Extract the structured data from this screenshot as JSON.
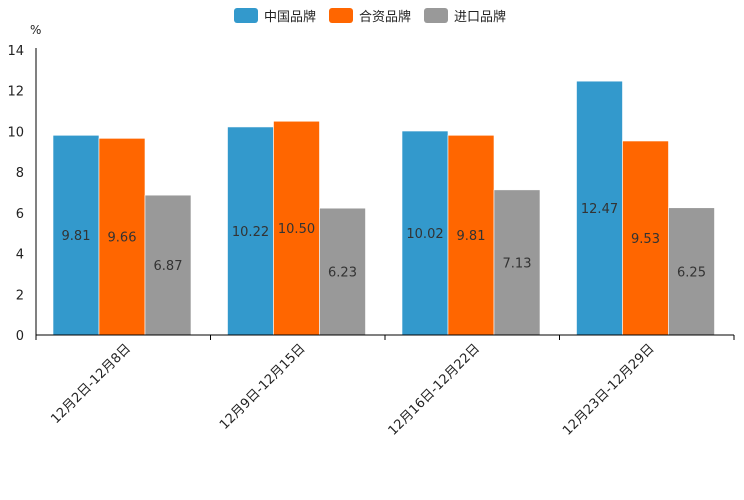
{
  "chart_data": {
    "type": "bar",
    "title": "",
    "ylabel": "%",
    "xlabel": "",
    "ylim": [
      0,
      14
    ],
    "yticks": [
      0,
      2,
      4,
      6,
      8,
      10,
      12,
      14
    ],
    "legend_position": "top-center",
    "grid": false,
    "categories": [
      "12月2日-12月8日",
      "12月9日-12月15日",
      "12月16日-12月22日",
      "12月23日-12月29日"
    ],
    "series": [
      {
        "name": "中国品牌",
        "color": "#3399cc",
        "values": [
          9.81,
          10.22,
          10.02,
          12.47
        ],
        "labels": [
          "9.81",
          "10.22",
          "10.02",
          "12.47"
        ]
      },
      {
        "name": "合资品牌",
        "color": "#ff6600",
        "values": [
          9.66,
          10.5,
          9.81,
          9.53
        ],
        "labels": [
          "9.66",
          "10.50",
          "9.81",
          "9.53"
        ]
      },
      {
        "name": "进口品牌",
        "color": "#999999",
        "values": [
          6.87,
          6.23,
          7.13,
          6.25
        ],
        "labels": [
          "6.87",
          "6.23",
          "7.13",
          "6.25"
        ]
      }
    ]
  }
}
